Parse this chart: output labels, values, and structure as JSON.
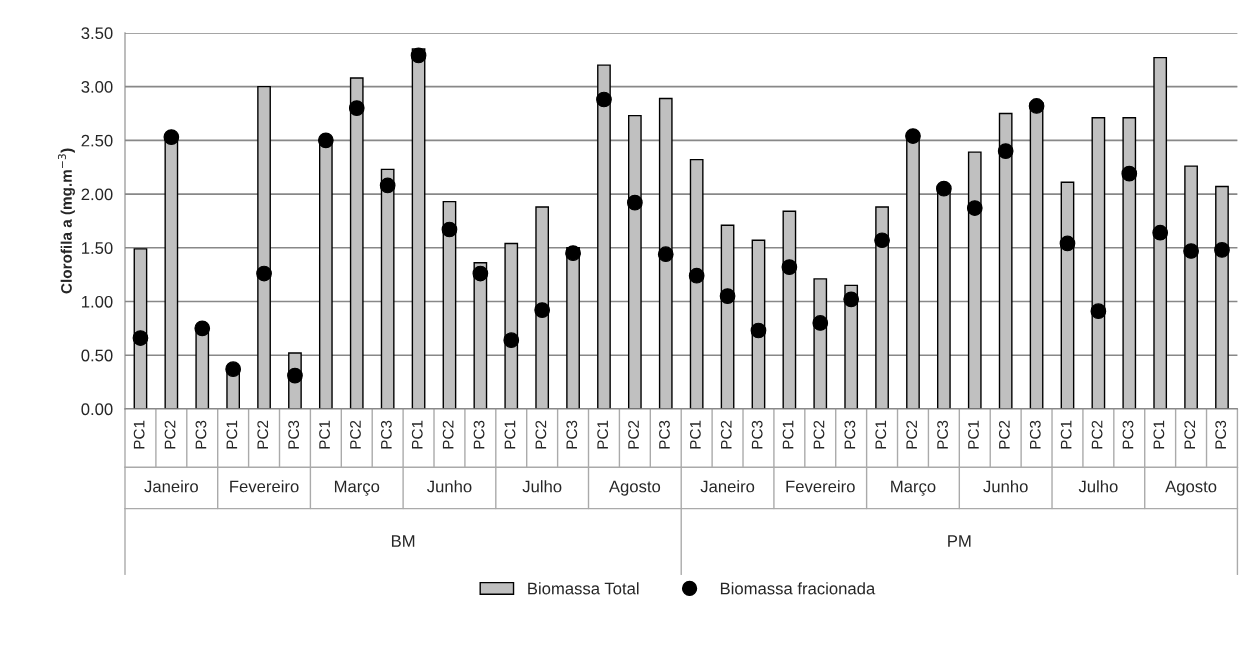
{
  "chart_data": {
    "type": "bar",
    "ylabel": "Clorofila a (mg.m$^{−3}$)",
    "categories": [
      "PC1",
      "PC2",
      "PC3",
      "PC1",
      "PC2",
      "PC3",
      "PC1",
      "PC2",
      "PC3",
      "PC1",
      "PC2",
      "PC3",
      "PC1",
      "PC2",
      "PC3",
      "PC1",
      "PC2",
      "PC3",
      "PC1",
      "PC2",
      "PC3",
      "PC1",
      "PC2",
      "PC3",
      "PC1",
      "PC2",
      "PC3",
      "PC1",
      "PC2",
      "PC3",
      "PC1",
      "PC2",
      "PC3",
      "PC1",
      "PC2",
      "PC3"
    ],
    "series": [
      {
        "name": "Biomassa Total",
        "color": "#c0c0c0",
        "values": [
          1.49,
          2.52,
          0.74,
          0.36,
          3.0,
          0.52,
          2.51,
          3.08,
          2.23,
          3.35,
          1.93,
          1.36,
          1.54,
          1.88,
          1.5,
          3.2,
          2.73,
          2.89,
          2.32,
          1.71,
          1.57,
          1.84,
          1.21,
          1.15,
          1.88,
          2.53,
          2.04,
          2.39,
          2.75,
          2.85,
          2.11,
          2.71,
          2.71,
          3.27,
          2.26,
          2.07
        ]
      },
      {
        "name": "Biomassa fracionada",
        "type": "scatter",
        "color": "#000000",
        "marker": "circle",
        "values": [
          0.66,
          2.53,
          0.75,
          0.37,
          1.26,
          0.31,
          2.5,
          2.8,
          2.08,
          3.29,
          1.67,
          1.26,
          0.64,
          0.92,
          1.45,
          2.88,
          1.92,
          1.44,
          1.24,
          1.05,
          0.73,
          1.32,
          0.8,
          1.02,
          1.57,
          2.54,
          2.05,
          1.87,
          2.4,
          2.82,
          1.54,
          0.91,
          2.19,
          1.64,
          1.47,
          1.48
        ]
      }
    ],
    "annotations": [
      "Janeiro",
      "Fevereiro",
      "Março",
      "Junho",
      "Julho",
      "Agosto",
      "Janeiro",
      "Fevereiro",
      "Março",
      "Junho",
      "Julho",
      "Agosto",
      "BM",
      "PM"
    ],
    "ylim": [
      0,
      3.5
    ],
    "yticks": [
      {
        "value": 0,
        "label": "0.00"
      },
      {
        "value": 0.5,
        "label": "0.50"
      },
      {
        "value": 1,
        "label": "1.00"
      },
      {
        "value": 1.5,
        "label": "1.50"
      },
      {
        "value": 2,
        "label": "2.00"
      },
      {
        "value": 2.5,
        "label": "2.50"
      },
      {
        "value": 3,
        "label": "3.00"
      },
      {
        "value": 3.5,
        "label": "3.50"
      }
    ],
    "grid": "y",
    "legend": "bottom"
  }
}
